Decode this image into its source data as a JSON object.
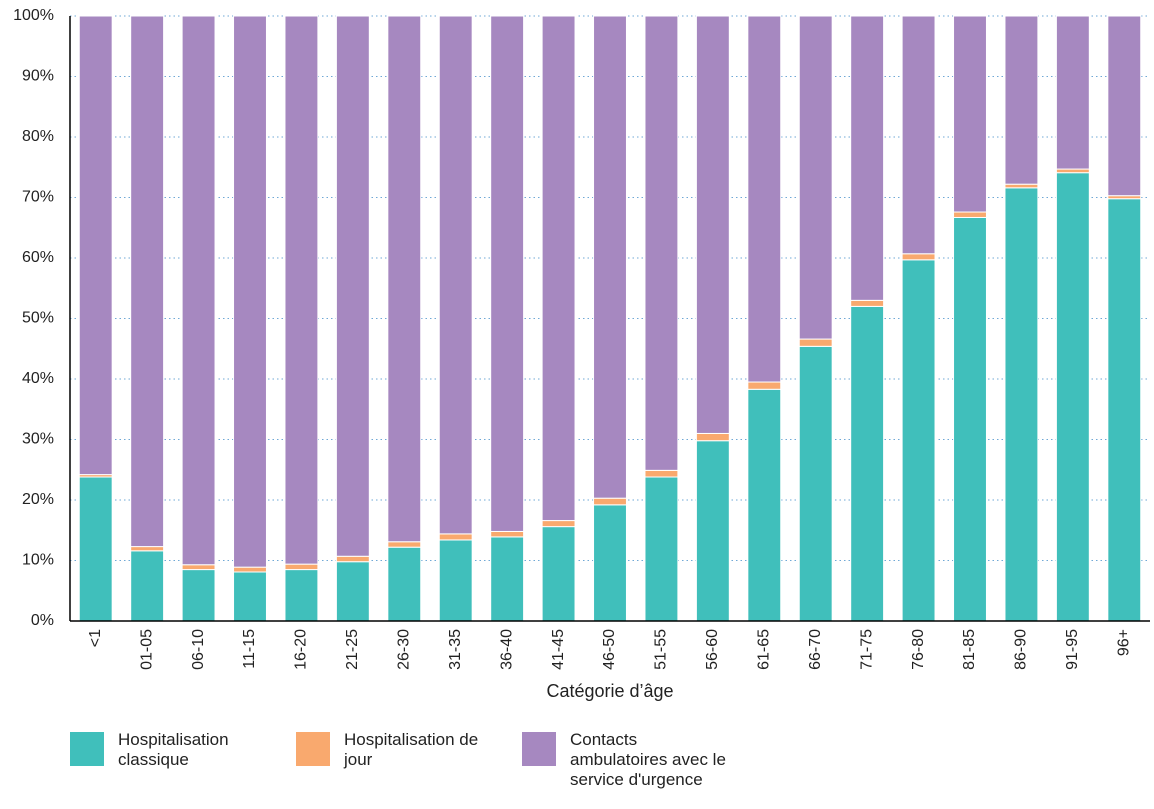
{
  "chart_data": {
    "type": "stacked_bar",
    "x_label": "Catégorie d’âge",
    "categories": [
      "<1",
      "01-05",
      "06-10",
      "11-15",
      "16-20",
      "21-25",
      "26-30",
      "31-35",
      "36-40",
      "41-45",
      "46-50",
      "51-55",
      "56-60",
      "61-65",
      "66-70",
      "71-75",
      "76-80",
      "81-85",
      "86-90",
      "91-95",
      "96+"
    ],
    "series": [
      {
        "name": "Hospitalisation classique",
        "color": "#40bfbb",
        "values": [
          23.8,
          11.6,
          8.5,
          8.1,
          8.5,
          9.8,
          12.2,
          13.4,
          13.9,
          15.6,
          19.2,
          23.8,
          29.8,
          38.3,
          45.4,
          52.0,
          59.7,
          66.7,
          71.6,
          74.1,
          69.8
        ]
      },
      {
        "name": "Hospitalisation de jour",
        "color": "#f9a96e",
        "values": [
          0.4,
          0.7,
          0.8,
          0.8,
          0.9,
          0.9,
          0.9,
          1.0,
          0.9,
          1.0,
          1.1,
          1.1,
          1.2,
          1.2,
          1.2,
          1.0,
          1.0,
          0.9,
          0.6,
          0.6,
          0.5
        ]
      },
      {
        "name": "Contacts ambulatoires avec le service d'urgence",
        "color": "#a688c0",
        "values": [
          75.8,
          87.7,
          90.7,
          91.1,
          90.6,
          89.3,
          86.9,
          85.6,
          85.2,
          83.4,
          79.7,
          75.1,
          69.0,
          60.5,
          53.4,
          47.0,
          39.3,
          32.4,
          27.8,
          25.3,
          29.7
        ]
      }
    ],
    "ylim": [
      0,
      100
    ],
    "yticks": [
      {
        "value": 0,
        "label": "0%"
      },
      {
        "value": 10,
        "label": "10%"
      },
      {
        "value": 20,
        "label": "20%"
      },
      {
        "value": 30,
        "label": "30%"
      },
      {
        "value": 40,
        "label": "40%"
      },
      {
        "value": 50,
        "label": "50%"
      },
      {
        "value": 60,
        "label": "60%"
      },
      {
        "value": 70,
        "label": "70%"
      },
      {
        "value": 80,
        "label": "80%"
      },
      {
        "value": 90,
        "label": "90%"
      },
      {
        "value": 100,
        "label": "100%"
      }
    ],
    "grid": true
  }
}
